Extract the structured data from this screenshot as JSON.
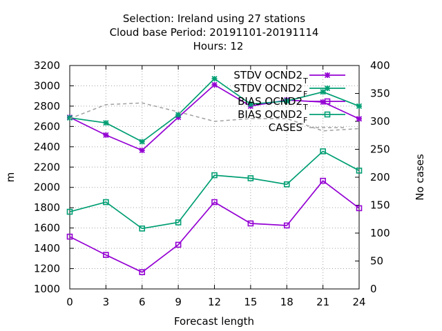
{
  "chart_data": {
    "type": "line",
    "title_lines": [
      "Selection: Ireland using    27 stations",
      "Cloud base   Period: 20191101-20191114",
      "Hours:  12"
    ],
    "xlabel": "Forecast length",
    "ylabel": "m",
    "y2label": "No cases",
    "x": [
      0,
      3,
      6,
      9,
      12,
      15,
      18,
      21,
      24
    ],
    "xlim": [
      0,
      24
    ],
    "ylim": [
      1000,
      3200
    ],
    "y2lim": [
      0,
      400
    ],
    "xticks": [
      0,
      3,
      6,
      9,
      12,
      15,
      18,
      21,
      24
    ],
    "yticks": [
      1000,
      1200,
      1400,
      1600,
      1800,
      2000,
      2200,
      2400,
      2600,
      2800,
      3000,
      3200
    ],
    "y2ticks": [
      0,
      50,
      100,
      150,
      200,
      250,
      300,
      350,
      400
    ],
    "grid": true,
    "legend_position": "top-right",
    "series": [
      {
        "name": "STDV OCND2",
        "subscript": "T",
        "color": "#9400d3",
        "marker": "star",
        "axis": "y",
        "values": [
          2690,
          2515,
          2365,
          2690,
          3010,
          2800,
          2860,
          2840,
          2675
        ]
      },
      {
        "name": "STDV OCND2",
        "subscript": "F",
        "color": "#009e73",
        "marker": "star",
        "axis": "y",
        "values": [
          2685,
          2635,
          2450,
          2715,
          3070,
          2820,
          2850,
          2940,
          2800
        ]
      },
      {
        "name": "BIAS OCND2",
        "subscript": "T",
        "color": "#9400d3",
        "marker": "square",
        "axis": "y",
        "values": [
          1515,
          1335,
          1165,
          1435,
          1855,
          1645,
          1625,
          2065,
          1795
        ]
      },
      {
        "name": "BIAS OCND2",
        "subscript": "F",
        "color": "#009e73",
        "marker": "square",
        "axis": "y",
        "values": [
          1760,
          1855,
          1595,
          1655,
          2120,
          2090,
          2030,
          2355,
          2165
        ]
      },
      {
        "name": "CASES",
        "subscript": "",
        "color": "#a0a0a0",
        "marker": "none",
        "dashed": true,
        "axis": "y2",
        "values": [
          305,
          330,
          333,
          317,
          300,
          305,
          305,
          283,
          287
        ]
      }
    ]
  }
}
